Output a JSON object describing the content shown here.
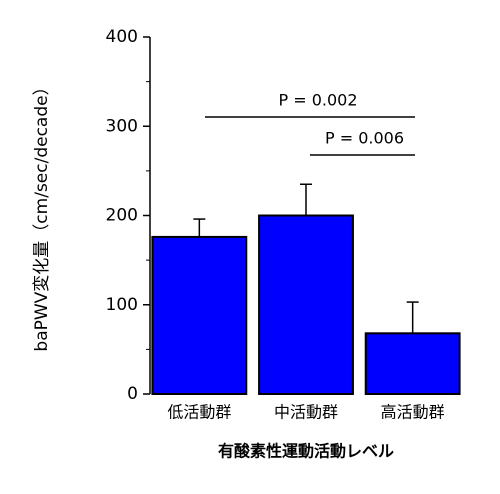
{
  "chart_data": {
    "type": "bar",
    "y_label": "baPWV変化量（cm/sec/decade）",
    "x_label": "有酸素性運動活動レベル",
    "categories": [
      "低活動群",
      "中活動群",
      "高活動群"
    ],
    "values": [
      176,
      200,
      68
    ],
    "errors": [
      20,
      35,
      35
    ],
    "color": "#0000ff",
    "ylim": [
      0,
      400
    ],
    "yticks": [
      0,
      100,
      200,
      300,
      400
    ],
    "yminor_ticks": [
      50,
      150,
      250,
      350
    ],
    "annotations": [
      {
        "text": "P = 0.002"
      },
      {
        "text": "P = 0.006"
      }
    ]
  }
}
